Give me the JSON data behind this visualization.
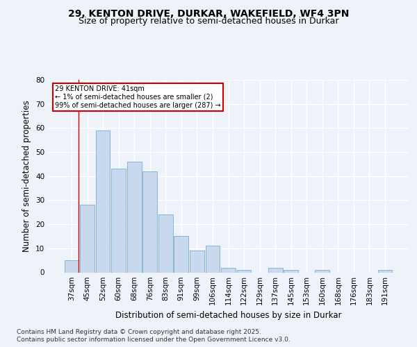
{
  "title1": "29, KENTON DRIVE, DURKAR, WAKEFIELD, WF4 3PN",
  "title2": "Size of property relative to semi-detached houses in Durkar",
  "xlabel": "Distribution of semi-detached houses by size in Durkar",
  "ylabel": "Number of semi-detached properties",
  "categories": [
    "37sqm",
    "45sqm",
    "52sqm",
    "60sqm",
    "68sqm",
    "76sqm",
    "83sqm",
    "91sqm",
    "99sqm",
    "106sqm",
    "114sqm",
    "122sqm",
    "129sqm",
    "137sqm",
    "145sqm",
    "153sqm",
    "160sqm",
    "168sqm",
    "176sqm",
    "183sqm",
    "191sqm"
  ],
  "values": [
    5,
    28,
    59,
    43,
    46,
    42,
    24,
    15,
    9,
    11,
    2,
    1,
    0,
    2,
    1,
    0,
    1,
    0,
    0,
    0,
    1
  ],
  "bar_color": "#c9d9ed",
  "bar_edge_color": "#7aadd4",
  "highlight_line_color": "#cc0000",
  "annotation_text": "29 KENTON DRIVE: 41sqm\n← 1% of semi-detached houses are smaller (2)\n99% of semi-detached houses are larger (287) →",
  "annotation_box_color": "#ffffff",
  "annotation_box_edge": "#cc0000",
  "ylim": [
    0,
    80
  ],
  "yticks": [
    0,
    10,
    20,
    30,
    40,
    50,
    60,
    70,
    80
  ],
  "footer1": "Contains HM Land Registry data © Crown copyright and database right 2025.",
  "footer2": "Contains public sector information licensed under the Open Government Licence v3.0.",
  "bg_color": "#eef2f9",
  "grid_color": "#ffffff",
  "title_fontsize": 10,
  "subtitle_fontsize": 9,
  "axis_label_fontsize": 8.5,
  "tick_fontsize": 7.5,
  "footer_fontsize": 6.5
}
